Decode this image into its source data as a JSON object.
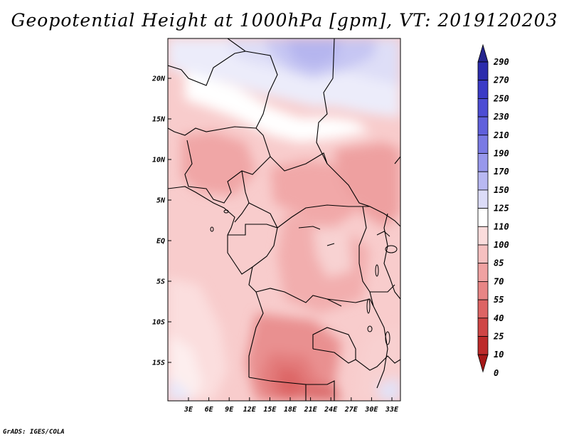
{
  "title": "Geopotential Height at 1000hPa [gpm], VT: 2019120203",
  "credit": "GrADS: IGES/COLA",
  "map": {
    "lat_labels": [
      "20N",
      "15N",
      "10N",
      "5N",
      "EQ",
      "5S",
      "10S",
      "15S"
    ],
    "lon_labels": [
      "3E",
      "6E",
      "9E",
      "12E",
      "15E",
      "18E",
      "21E",
      "24E",
      "27E",
      "30E",
      "33E"
    ],
    "extent": {
      "lon_min": 0,
      "lon_max": 35,
      "lat_min": -20,
      "lat_max": 24.5
    }
  },
  "colorbar": {
    "levels": [
      "290",
      "270",
      "250",
      "230",
      "210",
      "190",
      "170",
      "150",
      "125",
      "110",
      "100",
      "85",
      "70",
      "55",
      "40",
      "25",
      "10",
      "0"
    ],
    "colors": [
      "#25258e",
      "#2c2cad",
      "#3b3bc6",
      "#4d4dd4",
      "#6060dc",
      "#7a7ae4",
      "#9898ec",
      "#b8b8f2",
      "#dcdcf8",
      "#ffffff",
      "#fbdcdc",
      "#f6c0c0",
      "#f0a2a2",
      "#e88585",
      "#dd6464",
      "#cf4545",
      "#bd2a2a",
      "#a61818"
    ]
  }
}
